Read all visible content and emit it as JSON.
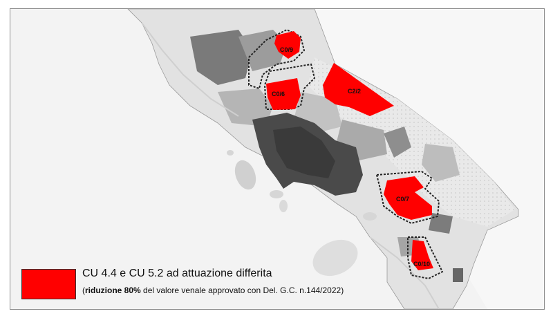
{
  "map": {
    "zones": [
      {
        "id": "C0/9",
        "label": "C0/9"
      },
      {
        "id": "C0/6",
        "label": "C0/6"
      },
      {
        "id": "C2/2",
        "label": "C2/2"
      },
      {
        "id": "C0/7",
        "label": "C0/7"
      },
      {
        "id": "C0/10",
        "label": "C0/10"
      }
    ],
    "colors": {
      "highlight": "#ff0000",
      "sea": "#f3f3f3",
      "land_light": "#e6e6e6",
      "urban_dark": "#4a4a4a",
      "boundary": "#222222"
    }
  },
  "legend": {
    "swatch_color": "#ff0000",
    "title": "CU 4.4 e CU 5.2 ad attuazione differita",
    "note_open": "(",
    "note_bold": "riduzione 80%",
    "note_rest": " del valore venale approvato con Del. G.C. n.144/2022)"
  }
}
